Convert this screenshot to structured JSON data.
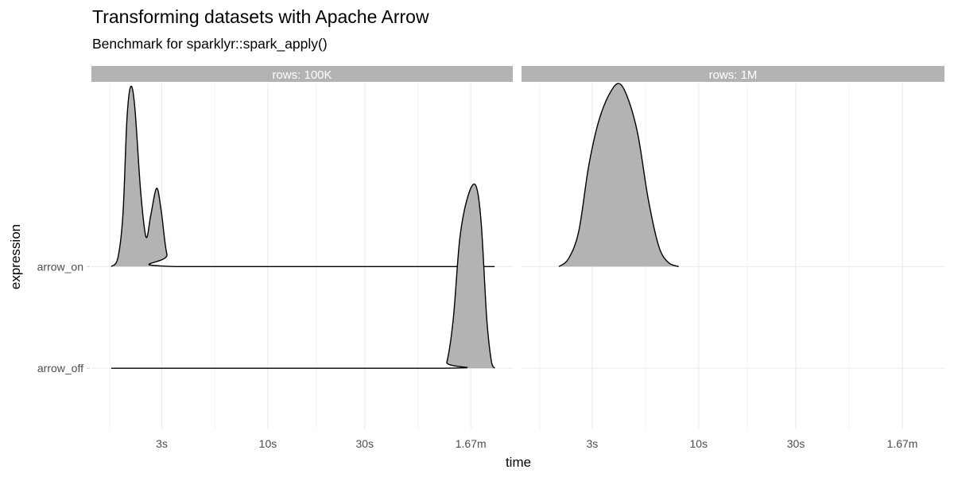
{
  "chart_data": {
    "type": "density-ridges",
    "title": "Transforming datasets with Apache Arrow",
    "subtitle": "Benchmark for sparklyr::spark_apply()",
    "xlabel": "time",
    "ylabel": "expression",
    "x_scale": "log10",
    "xlim_seconds": [
      1.35,
      161
    ],
    "x_ticks": [
      {
        "value": 3,
        "label": "3s"
      },
      {
        "value": 10,
        "label": "10s"
      },
      {
        "value": 30,
        "label": "30s"
      },
      {
        "value": 100,
        "label": "1.67m"
      }
    ],
    "x_minor_ticks": [
      1.66,
      5.48,
      17.3,
      54.8
    ],
    "categories": [
      "arrow_off",
      "arrow_on"
    ],
    "ylim": [
      0.4,
      3.8
    ],
    "grid": true,
    "fill_color": "#b3b3b3",
    "line_color": "#000000",
    "strip_color": "#b3b3b3",
    "panels": [
      {
        "strip": "rows:  100K",
        "series": [
          {
            "category": "arrow_on",
            "points": [
              [
                1.69,
                0
              ],
              [
                1.82,
                0.08
              ],
              [
                1.93,
                0.51
              ],
              [
                2.02,
                1.45
              ],
              [
                2.11,
                1.77
              ],
              [
                2.21,
                1.56
              ],
              [
                2.36,
                0.74
              ],
              [
                2.51,
                0.29
              ],
              [
                2.65,
                0.51
              ],
              [
                2.83,
                0.77
              ],
              [
                2.98,
                0.55
              ],
              [
                3.18,
                0.12
              ],
              [
                3.48,
                0
              ],
              [
                131,
                0
              ]
            ]
          },
          {
            "category": "arrow_off",
            "points": [
              [
                1.69,
                0
              ],
              [
                71.6,
                0
              ],
              [
                76.2,
                0.06
              ],
              [
                82.0,
                0.49
              ],
              [
                88.2,
                1.27
              ],
              [
                96.4,
                1.68
              ],
              [
                105.6,
                1.8
              ],
              [
                112.5,
                1.43
              ],
              [
                119.8,
                0.49
              ],
              [
                126.5,
                0.06
              ],
              [
                131.2,
                0
              ]
            ]
          }
        ]
      },
      {
        "strip": "rows:  1M",
        "series": [
          {
            "category": "arrow_on",
            "points": [
              [
                2.06,
                0
              ],
              [
                2.3,
                0.08
              ],
              [
                2.58,
                0.35
              ],
              [
                2.88,
                0.98
              ],
              [
                3.21,
                1.41
              ],
              [
                3.61,
                1.68
              ],
              [
                4.06,
                1.8
              ],
              [
                4.52,
                1.64
              ],
              [
                5.04,
                1.29
              ],
              [
                5.66,
                0.66
              ],
              [
                6.37,
                0.2
              ],
              [
                7.1,
                0.04
              ],
              [
                7.98,
                0
              ]
            ]
          }
        ]
      }
    ]
  }
}
